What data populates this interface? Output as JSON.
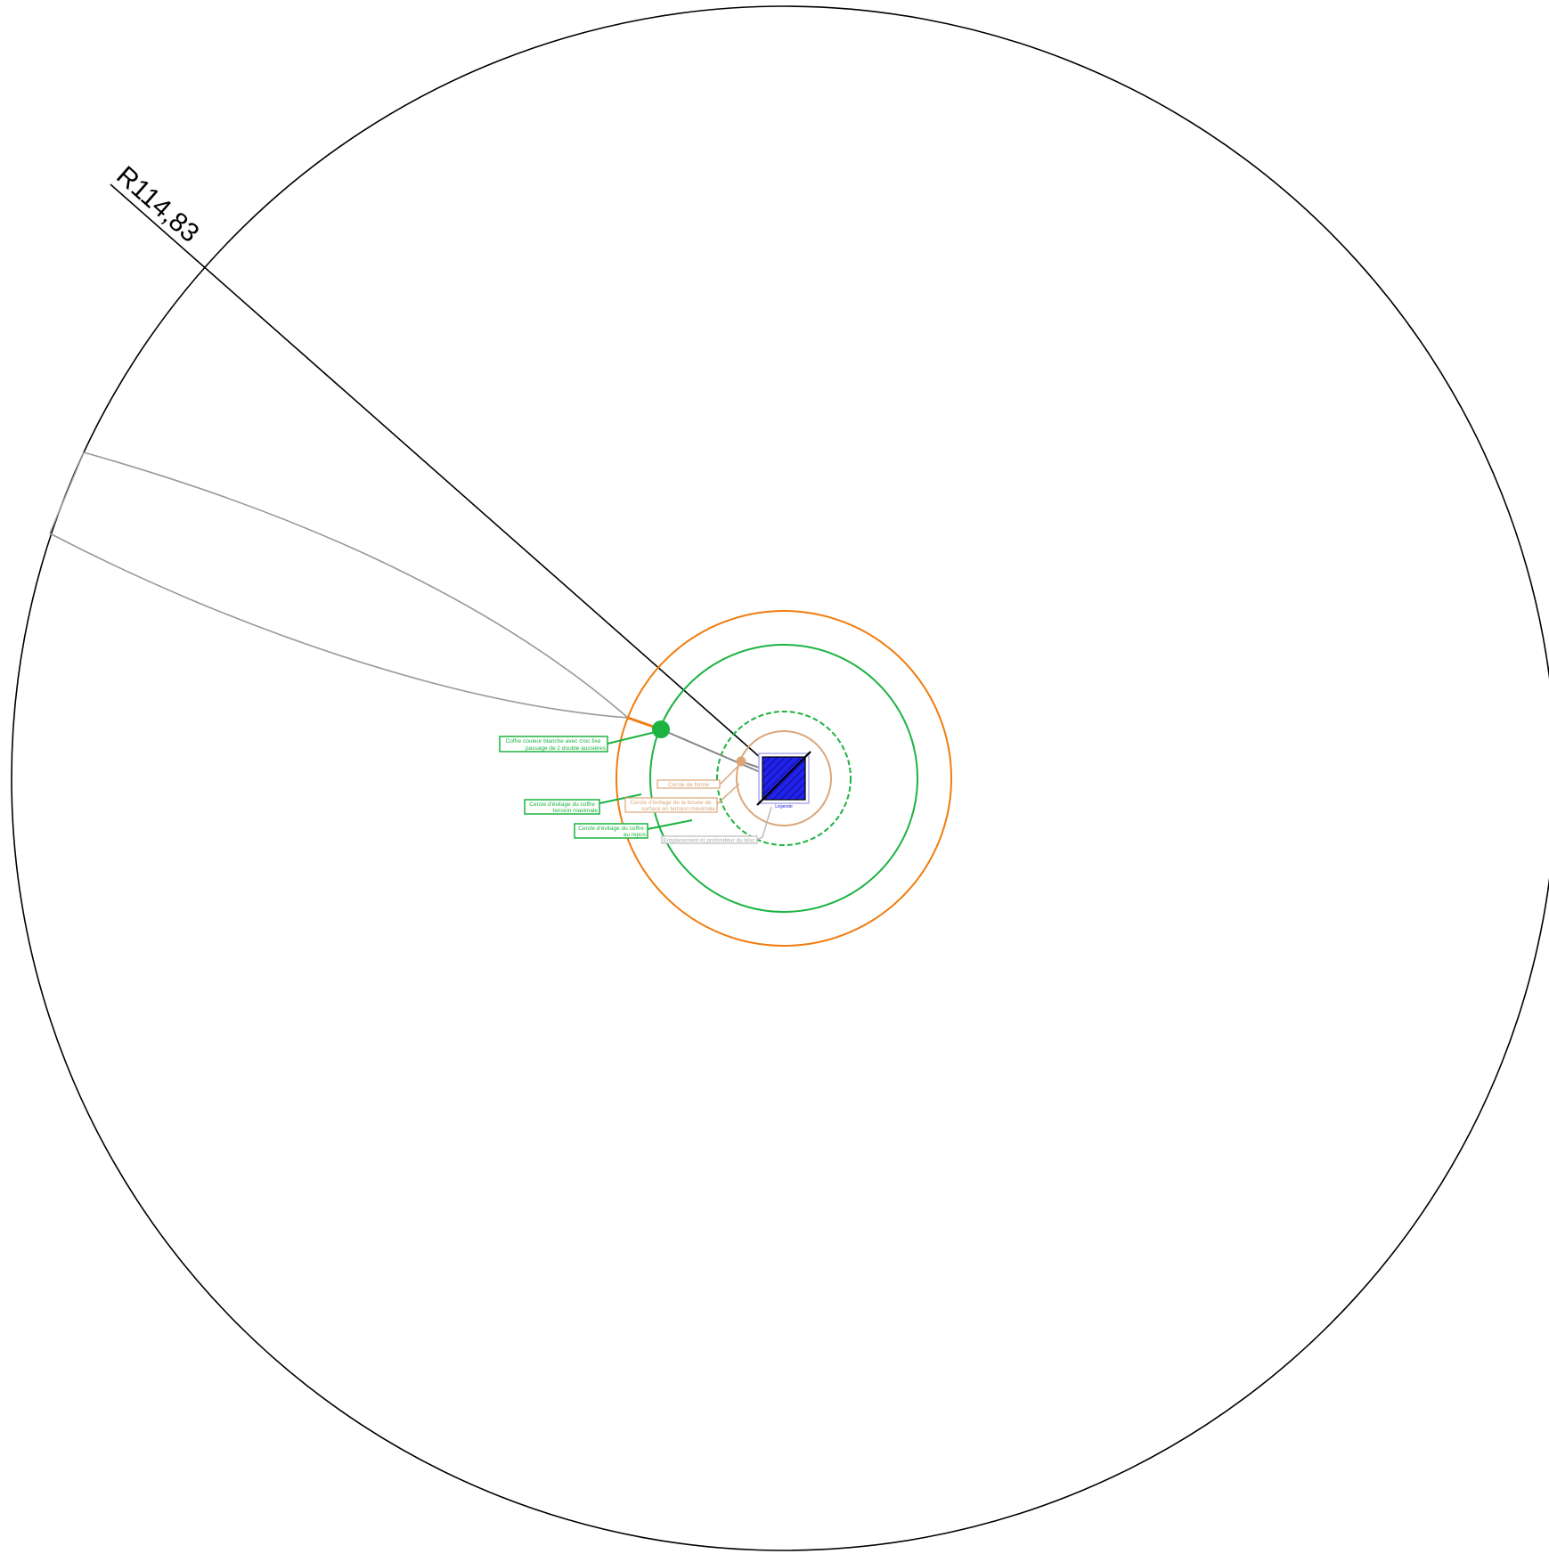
{
  "dimension": {
    "radius_label": "R114,83"
  },
  "colors": {
    "outer_circle": "#000000",
    "orange": "#f07d0f",
    "green": "#1cb341",
    "tan": "#dba67a",
    "gray": "#999999",
    "blue": "#2222ee",
    "light_gray": "#bbbbbb"
  },
  "labels": {
    "coffre": [
      "Coffre couleur blanche avec croc fixe",
      "passage de 2 double aussières"
    ],
    "evitage_coffre_tension": [
      "Cercle d'évitage du coffre",
      "tension maximale"
    ],
    "evitage_coffre_repos": [
      "Cercle d'évitage du coffre",
      "au repos"
    ],
    "cercle_forme": [
      "Cercle de forme"
    ],
    "evitage_bouee": [
      "Cercle d'évitage de la bouée de",
      "surface en tension maximale"
    ],
    "emplacement": [
      "Emplacement et profondeur du bloc"
    ],
    "legende_bloc": [
      "Légende"
    ]
  },
  "icons": {
    "coffre_buoy": "green-buoy-icon",
    "surface_buoy": "tan-buoy-icon",
    "anchor_block": "hatched-block-icon"
  }
}
